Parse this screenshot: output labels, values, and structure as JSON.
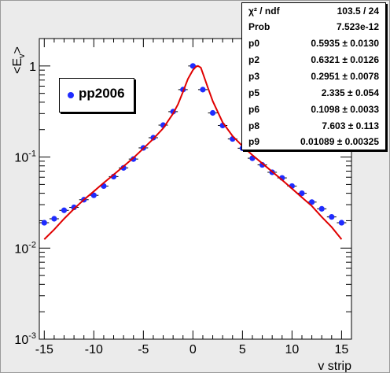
{
  "chart_data": {
    "type": "scatter",
    "title": "",
    "xlabel": "v strip",
    "ylabel": "<E_v>",
    "xlim": [
      -15.5,
      16.0
    ],
    "ylim": [
      0.001,
      2.0
    ],
    "yscale": "log",
    "xticks": [
      -15,
      -10,
      -5,
      0,
      5,
      10,
      15
    ],
    "yticks": [
      {
        "base": "10",
        "exp": "-3",
        "value": 0.001
      },
      {
        "base": "10",
        "exp": "-2",
        "value": 0.01
      },
      {
        "base": "10",
        "exp": "-1",
        "value": 0.1
      },
      {
        "base": "1",
        "exp": "",
        "value": 1
      }
    ],
    "legend": {
      "position": "top-left",
      "label": "pp2006"
    },
    "series": [
      {
        "name": "pp2006",
        "kind": "points",
        "color": "#1f2cff",
        "x": [
          -15,
          -14,
          -13,
          -12,
          -11,
          -10,
          -9,
          -8,
          -7,
          -6,
          -5,
          -4,
          -3,
          -2,
          -1,
          0,
          1,
          2,
          3,
          4,
          5,
          6,
          7,
          8,
          9,
          10,
          11,
          12,
          13,
          14,
          15
        ],
        "y": [
          0.019,
          0.021,
          0.026,
          0.028,
          0.034,
          0.038,
          0.048,
          0.061,
          0.076,
          0.095,
          0.126,
          0.163,
          0.224,
          0.315,
          0.55,
          1.0,
          0.55,
          0.305,
          0.222,
          0.158,
          0.125,
          0.097,
          0.082,
          0.068,
          0.059,
          0.048,
          0.04,
          0.032,
          0.027,
          0.022,
          0.019
        ]
      },
      {
        "name": "",
        "kind": "fit",
        "color": "#e00000",
        "x": [
          -15,
          -14,
          -13,
          -12,
          -11,
          -10,
          -9,
          -8,
          -7,
          -6,
          -5,
          -4,
          -3,
          -2,
          -1.5,
          -1,
          -0.5,
          0,
          0.3,
          0.5,
          0.8,
          1.0,
          1.5,
          2,
          3,
          4,
          5,
          6,
          7,
          8,
          9,
          10,
          11,
          12,
          13,
          14,
          15
        ],
        "y": [
          0.0125,
          0.016,
          0.021,
          0.027,
          0.034,
          0.042,
          0.052,
          0.064,
          0.079,
          0.098,
          0.124,
          0.158,
          0.207,
          0.3,
          0.38,
          0.52,
          0.72,
          0.9,
          0.98,
          1.0,
          0.96,
          0.83,
          0.58,
          0.41,
          0.24,
          0.17,
          0.132,
          0.105,
          0.085,
          0.069,
          0.056,
          0.045,
          0.036,
          0.029,
          0.022,
          0.017,
          0.0125
        ]
      }
    ]
  },
  "fit_stats": [
    {
      "key": "χ² / ndf",
      "value": "103.5 / 24"
    },
    {
      "key": "Prob",
      "value": "7.523e-12"
    },
    {
      "key": "p0",
      "value": "0.5935 ± 0.0130"
    },
    {
      "key": "p2",
      "value": "0.6321 ± 0.0126"
    },
    {
      "key": "p3",
      "value": "0.2951 ± 0.0078"
    },
    {
      "key": "p5",
      "value": "2.335 ± 0.054"
    },
    {
      "key": "p6",
      "value": "0.1098 ± 0.0033"
    },
    {
      "key": "p8",
      "value": "7.603 ± 0.113"
    },
    {
      "key": "p9",
      "value": "0.01089 ± 0.00325"
    }
  ]
}
